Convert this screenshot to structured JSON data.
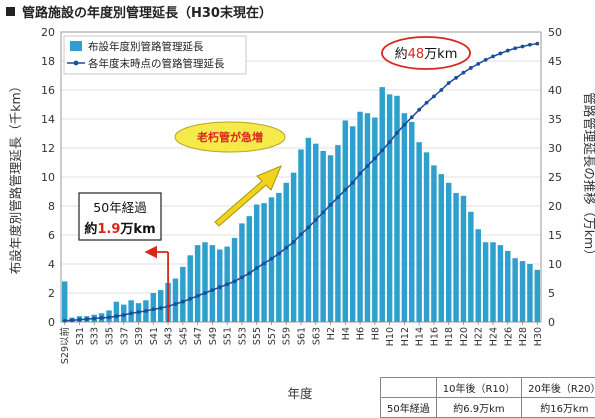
{
  "title": "管路施設の年度別管理延長（H30末現在）",
  "chart_data": {
    "type": "bar",
    "categories": [
      "S29以前",
      "S30",
      "S31",
      "S32",
      "S33",
      "S34",
      "S35",
      "S36",
      "S37",
      "S38",
      "S39",
      "S40",
      "S41",
      "S42",
      "S43",
      "S44",
      "S45",
      "S46",
      "S47",
      "S48",
      "S49",
      "S50",
      "S51",
      "S52",
      "S53",
      "S54",
      "S55",
      "S56",
      "S57",
      "S58",
      "S59",
      "S60",
      "S61",
      "S62",
      "S63",
      "H1",
      "H2",
      "H3",
      "H4",
      "H5",
      "H6",
      "H7",
      "H8",
      "H9",
      "H10",
      "H11",
      "H12",
      "H13",
      "H14",
      "H15",
      "H16",
      "H17",
      "H18",
      "H19",
      "H20",
      "H21",
      "H22",
      "H23",
      "H24",
      "H25",
      "H26",
      "H27",
      "H28",
      "H29",
      "H30"
    ],
    "tick_labels": [
      "S29以前",
      "S31",
      "S33",
      "S35",
      "S37",
      "S39",
      "S41",
      "S43",
      "S45",
      "S47",
      "S49",
      "S51",
      "S53",
      "S55",
      "S57",
      "S59",
      "S61",
      "S63",
      "H2",
      "H4",
      "H6",
      "H8",
      "H10",
      "H12",
      "H14",
      "H16",
      "H18",
      "H20",
      "H22",
      "H24",
      "H26",
      "H28",
      "H30"
    ],
    "series": [
      {
        "name": "布設年度別管路管理延長",
        "axis": "left",
        "type": "bar",
        "color": "#2f9fcd",
        "values": [
          2.8,
          0.3,
          0.4,
          0.4,
          0.5,
          0.6,
          0.8,
          1.4,
          1.2,
          1.5,
          1.3,
          1.5,
          2.0,
          2.2,
          2.7,
          3.0,
          3.8,
          4.6,
          5.3,
          5.5,
          5.3,
          5.0,
          5.2,
          5.8,
          6.8,
          7.3,
          8.1,
          8.2,
          8.6,
          8.9,
          9.6,
          10.3,
          11.9,
          12.7,
          12.3,
          11.8,
          11.5,
          12.2,
          13.9,
          13.5,
          14.5,
          14.4,
          14.1,
          16.2,
          15.7,
          15.6,
          14.4,
          13.8,
          12.4,
          11.7,
          10.8,
          10.2,
          9.6,
          8.9,
          8.7,
          7.6,
          6.4,
          5.5,
          5.5,
          5.3,
          4.9,
          4.4,
          4.2,
          4.0,
          3.6
        ]
      },
      {
        "name": "各年度末時点の管路管理延長",
        "axis": "right",
        "type": "line",
        "color": "#1a4d9c",
        "values": [
          0.2,
          0.3,
          0.4,
          0.5,
          0.6,
          0.7,
          0.8,
          1.0,
          1.2,
          1.5,
          1.7,
          1.9,
          2.2,
          2.4,
          2.7,
          3.1,
          3.5,
          4.0,
          4.5,
          5.0,
          5.5,
          6.0,
          6.5,
          7.0,
          7.7,
          8.4,
          9.3,
          10.1,
          10.9,
          11.8,
          12.8,
          13.8,
          15.1,
          16.3,
          17.6,
          18.9,
          20.2,
          21.5,
          22.8,
          24.0,
          25.6,
          26.9,
          28.2,
          29.6,
          31.0,
          32.6,
          34.0,
          35.3,
          36.6,
          37.8,
          38.9,
          40.0,
          41.2,
          42.1,
          43.0,
          43.8,
          44.5,
          45.2,
          45.8,
          46.3,
          46.8,
          47.2,
          47.5,
          47.8,
          48.0
        ]
      }
    ],
    "ylabel_left": "布設年度別管路管理延長（千km）",
    "ylabel_right": "管路管理延長の推移（万km）",
    "xlabel": "年度",
    "ylim_left": [
      0,
      20
    ],
    "ylim_right": [
      0,
      50
    ],
    "yticks_left": [
      "0",
      "2",
      "4",
      "6",
      "8",
      "10",
      "12",
      "14",
      "16",
      "18",
      "20"
    ],
    "yticks_right": [
      "0",
      "5",
      "10",
      "15",
      "20",
      "25",
      "30",
      "35",
      "40",
      "45",
      "50"
    ],
    "grid": true,
    "legend": "top-left",
    "annotations": {
      "peak_label": {
        "pre": "約",
        "num": "48",
        "post": "万km"
      },
      "arrow_label": "老朽管が急増",
      "box_line1": "50年経過",
      "box_line2": {
        "pre": "約",
        "num": "1.9",
        "post": "万km"
      },
      "marker_category": "S43"
    }
  },
  "forecast_table": {
    "header": [
      "",
      "10年後（R10）",
      "20年後（R20）"
    ],
    "row": [
      "50年経過",
      "約6.9万km",
      "約16万km"
    ]
  }
}
